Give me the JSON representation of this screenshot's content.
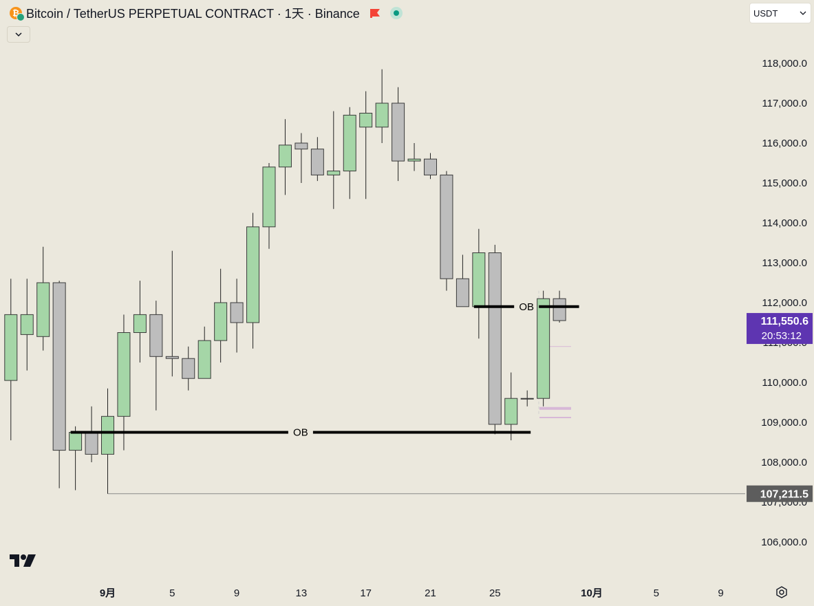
{
  "header": {
    "title": "Bitcoin / TetherUS PERPETUAL CONTRACT · 1天 · Binance",
    "currency": "USDT"
  },
  "icons": {
    "symbol": "bitcoin-icon",
    "flag": "flag-icon",
    "status": "market-status-icon",
    "collapse": "chevron-down-icon",
    "logo": "tradingview-logo-icon",
    "settings": "settings-icon"
  },
  "colors": {
    "up_fill": "#a5d6a7",
    "down_fill": "#bdbdbd",
    "candle_border": "#3a3a3a",
    "price_badge": "#5e35b1",
    "level_badge": "#5d5d5d",
    "background": "#ebe8dd"
  },
  "chart_data": {
    "type": "candlestick",
    "timeframe": "1天",
    "y_range": [
      105500,
      119400
    ],
    "y_ticks": [
      "118,000.0",
      "117,000.0",
      "116,000.0",
      "115,000.0",
      "114,000.0",
      "113,000.0",
      "112,000.0",
      "111,000.0",
      "110,000.0",
      "109,000.0",
      "108,000.0",
      "107,000.0",
      "106,000.0"
    ],
    "x_labels": [
      {
        "text": "9月",
        "date": "2025-09-01",
        "bold": true
      },
      {
        "text": "5",
        "date": "2025-09-05",
        "bold": false
      },
      {
        "text": "9",
        "date": "2025-09-09",
        "bold": false
      },
      {
        "text": "13",
        "date": "2025-09-13",
        "bold": false
      },
      {
        "text": "17",
        "date": "2025-09-17",
        "bold": false
      },
      {
        "text": "21",
        "date": "2025-09-21",
        "bold": false
      },
      {
        "text": "25",
        "date": "2025-09-25",
        "bold": false
      },
      {
        "text": "10月",
        "date": "2025-10-01",
        "bold": true
      },
      {
        "text": "5",
        "date": "2025-10-05",
        "bold": false
      },
      {
        "text": "9",
        "date": "2025-10-09",
        "bold": false
      }
    ],
    "candles": [
      {
        "date": "2025-08-26",
        "open": 110050,
        "high": 112600,
        "low": 108550,
        "close": 111700
      },
      {
        "date": "2025-08-27",
        "open": 111200,
        "high": 112600,
        "low": 110300,
        "close": 111700
      },
      {
        "date": "2025-08-28",
        "open": 111150,
        "high": 113400,
        "low": 110800,
        "close": 112500
      },
      {
        "date": "2025-08-29",
        "open": 112500,
        "high": 112550,
        "low": 107350,
        "close": 108300
      },
      {
        "date": "2025-08-30",
        "open": 108300,
        "high": 108900,
        "low": 107300,
        "close": 108750
      },
      {
        "date": "2025-08-31",
        "open": 108750,
        "high": 109400,
        "low": 108000,
        "close": 108200
      },
      {
        "date": "2025-09-01",
        "open": 108200,
        "high": 109850,
        "low": 107211.5,
        "close": 109150
      },
      {
        "date": "2025-09-02",
        "open": 109150,
        "high": 111700,
        "low": 108300,
        "close": 111250
      },
      {
        "date": "2025-09-03",
        "open": 111250,
        "high": 112550,
        "low": 110500,
        "close": 111700
      },
      {
        "date": "2025-09-04",
        "open": 111700,
        "high": 112050,
        "low": 109300,
        "close": 110650
      },
      {
        "date": "2025-09-05",
        "open": 110650,
        "high": 113300,
        "low": 110150,
        "close": 110600
      },
      {
        "date": "2025-09-06",
        "open": 110600,
        "high": 110900,
        "low": 109800,
        "close": 110100
      },
      {
        "date": "2025-09-07",
        "open": 110100,
        "high": 111400,
        "low": 110100,
        "close": 111050
      },
      {
        "date": "2025-09-08",
        "open": 111050,
        "high": 112850,
        "low": 110500,
        "close": 112000
      },
      {
        "date": "2025-09-09",
        "open": 112000,
        "high": 112600,
        "low": 110750,
        "close": 111500
      },
      {
        "date": "2025-09-10",
        "open": 111500,
        "high": 114250,
        "low": 110850,
        "close": 113900
      },
      {
        "date": "2025-09-11",
        "open": 113900,
        "high": 115500,
        "low": 113350,
        "close": 115400
      },
      {
        "date": "2025-09-12",
        "open": 115400,
        "high": 116600,
        "low": 114700,
        "close": 115950
      },
      {
        "date": "2025-09-13",
        "open": 116000,
        "high": 116250,
        "low": 115000,
        "close": 115850
      },
      {
        "date": "2025-09-14",
        "open": 115850,
        "high": 116150,
        "low": 115050,
        "close": 115200
      },
      {
        "date": "2025-09-15",
        "open": 115200,
        "high": 116800,
        "low": 114350,
        "close": 115300
      },
      {
        "date": "2025-09-16",
        "open": 115300,
        "high": 116900,
        "low": 114600,
        "close": 116700
      },
      {
        "date": "2025-09-17",
        "open": 116400,
        "high": 117300,
        "low": 114600,
        "close": 116750
      },
      {
        "date": "2025-09-18",
        "open": 116400,
        "high": 117850,
        "low": 116000,
        "close": 117000
      },
      {
        "date": "2025-09-19",
        "open": 117000,
        "high": 117400,
        "low": 115050,
        "close": 115550
      },
      {
        "date": "2025-09-20",
        "open": 115550,
        "high": 116000,
        "low": 115300,
        "close": 115600
      },
      {
        "date": "2025-09-21",
        "open": 115600,
        "high": 115750,
        "low": 115100,
        "close": 115200
      },
      {
        "date": "2025-09-22",
        "open": 115200,
        "high": 115300,
        "low": 112300,
        "close": 112600
      },
      {
        "date": "2025-09-23",
        "open": 112600,
        "high": 113200,
        "low": 111900,
        "close": 111900
      },
      {
        "date": "2025-09-24",
        "open": 111900,
        "high": 113850,
        "low": 111100,
        "close": 113250
      },
      {
        "date": "2025-09-25",
        "open": 113250,
        "high": 113450,
        "low": 108700,
        "close": 108950
      },
      {
        "date": "2025-09-26",
        "open": 108950,
        "high": 110250,
        "low": 108550,
        "close": 109600
      },
      {
        "date": "2025-09-27",
        "open": 109600,
        "high": 109800,
        "low": 109400,
        "close": 109600
      },
      {
        "date": "2025-09-28",
        "open": 109600,
        "high": 112300,
        "low": 109400,
        "close": 112100
      },
      {
        "date": "2025-09-29",
        "open": 112100,
        "high": 112300,
        "low": 111500,
        "close": 111550.6
      }
    ],
    "annotations": [
      {
        "type": "order-block",
        "label": "OB",
        "price": 108750,
        "from": "2025-08-30",
        "to": "2025-09-27"
      },
      {
        "type": "order-block",
        "label": "OB",
        "price": 111900,
        "from": "2025-09-24",
        "to": "2025-09-30"
      },
      {
        "type": "horizontal-line",
        "price": 107211.5,
        "from": "2025-09-01"
      }
    ],
    "price_markers": {
      "current": {
        "price": 111550.6,
        "label": "111,550.6",
        "countdown": "20:53:12"
      },
      "level": {
        "price": 107211.5,
        "label": "107,211.5"
      }
    },
    "grid": false,
    "legend": "none"
  }
}
